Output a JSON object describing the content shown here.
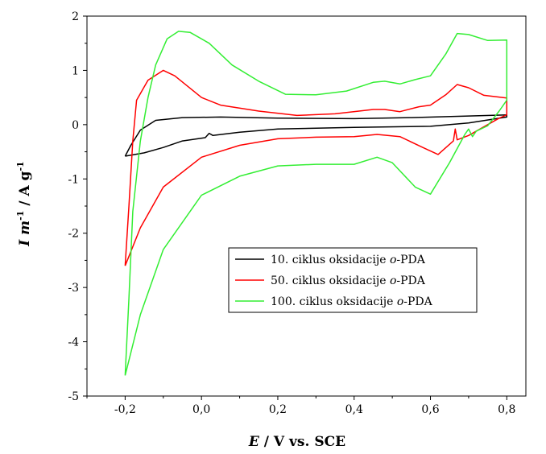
{
  "chart_data": {
    "type": "line",
    "title": "",
    "xlabel": {
      "var": "E",
      "rest": " / V  vs.  SCE"
    },
    "ylabel": {
      "var1": "I m",
      "sup1": "-1",
      "rest": " / A g",
      "sup2": "-1"
    },
    "xlim": [
      -0.3,
      0.85
    ],
    "ylim": [
      -5,
      2
    ],
    "x_ticks": [
      -0.2,
      0.0,
      0.2,
      0.4,
      0.6,
      0.8
    ],
    "x_tick_labels": [
      "-0,2",
      "0,0",
      "0,2",
      "0,4",
      "0,6",
      "0,8"
    ],
    "y_ticks": [
      -5,
      -4,
      -3,
      -2,
      -1,
      0,
      1,
      2
    ],
    "y_tick_labels": [
      "-5",
      "-4",
      "-3",
      "-2",
      "-1",
      "0",
      "1",
      "2"
    ],
    "grid": false,
    "legend_position": "center-right",
    "series": [
      {
        "name": {
          "prefix": "10. ciklus oksidacije ",
          "italic": "o",
          "suffix": "-PDA"
        },
        "color": "#000000",
        "points": [
          [
            -0.2,
            -0.58
          ],
          [
            -0.185,
            -0.38
          ],
          [
            -0.16,
            -0.1
          ],
          [
            -0.12,
            0.08
          ],
          [
            -0.05,
            0.13
          ],
          [
            0.05,
            0.14
          ],
          [
            0.2,
            0.12
          ],
          [
            0.4,
            0.11
          ],
          [
            0.55,
            0.13
          ],
          [
            0.7,
            0.16
          ],
          [
            0.8,
            0.18
          ],
          [
            0.8,
            0.14
          ],
          [
            0.7,
            0.03
          ],
          [
            0.6,
            -0.03
          ],
          [
            0.4,
            -0.05
          ],
          [
            0.2,
            -0.08
          ],
          [
            0.1,
            -0.14
          ],
          [
            0.03,
            -0.2
          ],
          [
            0.02,
            -0.16
          ],
          [
            0.01,
            -0.24
          ],
          [
            -0.05,
            -0.3
          ],
          [
            -0.1,
            -0.42
          ],
          [
            -0.15,
            -0.52
          ],
          [
            -0.2,
            -0.58
          ]
        ]
      },
      {
        "name": {
          "prefix": "50. ciklus oksidacije ",
          "italic": "o",
          "suffix": "-PDA"
        },
        "color": "#ff0000",
        "points": [
          [
            -0.2,
            -2.6
          ],
          [
            -0.19,
            -1.5
          ],
          [
            -0.18,
            -0.3
          ],
          [
            -0.17,
            0.45
          ],
          [
            -0.14,
            0.82
          ],
          [
            -0.1,
            1.0
          ],
          [
            -0.07,
            0.9
          ],
          [
            0.0,
            0.5
          ],
          [
            0.05,
            0.36
          ],
          [
            0.15,
            0.25
          ],
          [
            0.25,
            0.17
          ],
          [
            0.35,
            0.2
          ],
          [
            0.45,
            0.28
          ],
          [
            0.48,
            0.28
          ],
          [
            0.52,
            0.24
          ],
          [
            0.57,
            0.33
          ],
          [
            0.6,
            0.36
          ],
          [
            0.64,
            0.55
          ],
          [
            0.67,
            0.74
          ],
          [
            0.7,
            0.68
          ],
          [
            0.74,
            0.54
          ],
          [
            0.8,
            0.49
          ],
          [
            0.8,
            0.18
          ],
          [
            0.78,
            0.12
          ],
          [
            0.7,
            -0.2
          ],
          [
            0.67,
            -0.28
          ],
          [
            0.665,
            -0.08
          ],
          [
            0.66,
            -0.3
          ],
          [
            0.62,
            -0.55
          ],
          [
            0.58,
            -0.42
          ],
          [
            0.52,
            -0.22
          ],
          [
            0.46,
            -0.18
          ],
          [
            0.4,
            -0.22
          ],
          [
            0.3,
            -0.23
          ],
          [
            0.2,
            -0.26
          ],
          [
            0.1,
            -0.38
          ],
          [
            0.0,
            -0.6
          ],
          [
            -0.1,
            -1.15
          ],
          [
            -0.16,
            -1.9
          ],
          [
            -0.2,
            -2.6
          ]
        ]
      },
      {
        "name": {
          "prefix": "100. ciklus oksidacije ",
          "italic": "o",
          "suffix": "-PDA"
        },
        "color": "#33ee33",
        "points": [
          [
            -0.2,
            -4.62
          ],
          [
            -0.19,
            -3.2
          ],
          [
            -0.18,
            -1.6
          ],
          [
            -0.16,
            -0.3
          ],
          [
            -0.14,
            0.5
          ],
          [
            -0.12,
            1.1
          ],
          [
            -0.09,
            1.58
          ],
          [
            -0.06,
            1.72
          ],
          [
            -0.03,
            1.7
          ],
          [
            0.02,
            1.5
          ],
          [
            0.08,
            1.1
          ],
          [
            0.15,
            0.8
          ],
          [
            0.22,
            0.56
          ],
          [
            0.3,
            0.55
          ],
          [
            0.38,
            0.62
          ],
          [
            0.45,
            0.78
          ],
          [
            0.48,
            0.8
          ],
          [
            0.52,
            0.75
          ],
          [
            0.56,
            0.83
          ],
          [
            0.6,
            0.9
          ],
          [
            0.64,
            1.3
          ],
          [
            0.67,
            1.68
          ],
          [
            0.7,
            1.66
          ],
          [
            0.75,
            1.55
          ],
          [
            0.8,
            1.56
          ],
          [
            0.8,
            0.45
          ],
          [
            0.78,
            0.25
          ],
          [
            0.75,
            -0.02
          ],
          [
            0.72,
            -0.12
          ],
          [
            0.71,
            -0.22
          ],
          [
            0.7,
            -0.08
          ],
          [
            0.69,
            -0.18
          ],
          [
            0.65,
            -0.7
          ],
          [
            0.6,
            -1.28
          ],
          [
            0.56,
            -1.15
          ],
          [
            0.5,
            -0.7
          ],
          [
            0.46,
            -0.6
          ],
          [
            0.4,
            -0.73
          ],
          [
            0.3,
            -0.73
          ],
          [
            0.2,
            -0.76
          ],
          [
            0.1,
            -0.95
          ],
          [
            0.0,
            -1.3
          ],
          [
            -0.1,
            -2.3
          ],
          [
            -0.16,
            -3.5
          ],
          [
            -0.2,
            -4.62
          ]
        ]
      }
    ]
  }
}
